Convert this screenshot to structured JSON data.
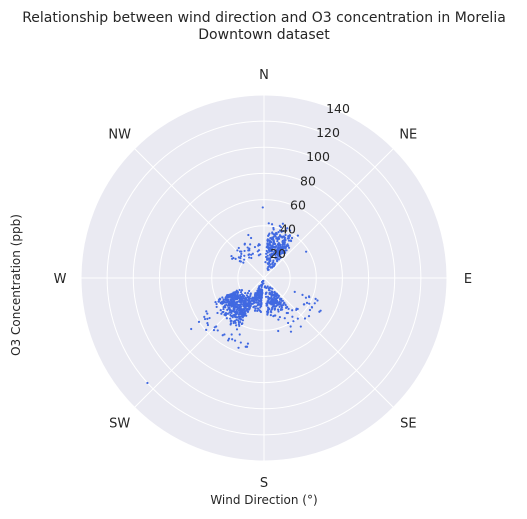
{
  "chart_data": {
    "type": "scatter",
    "projection": "polar",
    "title_line1": "Relationship between wind direction and O3 concentration in Morelia",
    "title_line2": "Downtown dataset",
    "xlabel": "Wind Direction (°)",
    "ylabel": "O3 Concentration (ppb)",
    "theta_zero": "N",
    "theta_direction": "clockwise",
    "compass_labels": [
      "N",
      "NE",
      "E",
      "SE",
      "S",
      "SW",
      "W",
      "NW"
    ],
    "r_ticks": [
      20,
      40,
      60,
      80,
      100,
      120,
      140
    ],
    "r_tick_labels": [
      "20",
      "40",
      "60",
      "80",
      "100",
      "120",
      "140"
    ],
    "rlim": [
      0,
      140
    ],
    "grid": true,
    "marker_color": "#4169e1",
    "background_color": "#eaeaf2",
    "clusters": [
      {
        "theta_range": [
          5,
          40
        ],
        "r_range": [
          5,
          45
        ],
        "count": 260
      },
      {
        "theta_range": [
          140,
          175
        ],
        "r_range": [
          5,
          35
        ],
        "count": 170
      },
      {
        "theta_range": [
          205,
          245
        ],
        "r_range": [
          15,
          45
        ],
        "count": 420
      },
      {
        "theta_range": [
          185,
          210
        ],
        "r_range": [
          2,
          28
        ],
        "count": 140
      },
      {
        "theta_range": [
          300,
          355
        ],
        "r_range": [
          15,
          35
        ],
        "count": 40
      },
      {
        "theta_range": [
          110,
          155
        ],
        "r_range": [
          25,
          50
        ],
        "count": 30
      },
      {
        "theta_range": [
          190,
          240
        ],
        "r_range": [
          45,
          62
        ],
        "count": 25
      }
    ],
    "outliers": [
      {
        "theta": 359,
        "r": 54
      },
      {
        "theta": 5,
        "r": 42
      },
      {
        "theta": 228,
        "r": 120
      },
      {
        "theta": 235,
        "r": 68
      },
      {
        "theta": 236,
        "r": 60
      },
      {
        "theta": 230,
        "r": 56
      },
      {
        "theta": 240,
        "r": 51
      },
      {
        "theta": 165,
        "r": 42
      },
      {
        "theta": 120,
        "r": 38
      },
      {
        "theta": 25,
        "r": 42
      },
      {
        "theta": 58,
        "r": 38
      },
      {
        "theta": 120,
        "r": 50
      },
      {
        "theta": 320,
        "r": 30
      },
      {
        "theta": 340,
        "r": 35
      }
    ]
  }
}
